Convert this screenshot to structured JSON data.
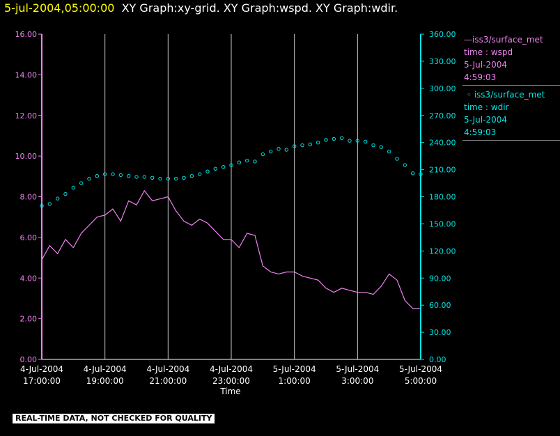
{
  "header": {
    "timestamp": "5-jul-2004,05:00:00",
    "titles": "XY Graph:xy-grid.  XY Graph:wspd.  XY Graph:wdir."
  },
  "legend": [
    {
      "line1": "iss3/surface_met",
      "line2": "time : wspd",
      "line3": "5-Jul-2004",
      "line4": "4:59:03",
      "marker": "line"
    },
    {
      "line1": "iss3/surface_met",
      "line2": "time : wdir",
      "line3": "5-Jul-2004",
      "line4": "4:59:03",
      "marker": "circle"
    }
  ],
  "disclaimer": "REAL-TIME DATA, NOT CHECKED FOR QUALITY",
  "colors": {
    "wspd": "#ee82ee",
    "wdir": "#00e5e5",
    "grid": "#c8c8c8",
    "axis_left": "#ee82ee",
    "axis_right": "#00e5e5",
    "header_time": "#ffff00"
  },
  "chart_data": {
    "type": "line",
    "xlabel": "Time",
    "xlim": [
      17.0,
      29.0
    ],
    "x_ticks": [
      {
        "x": 17,
        "line1": "4-Jul-2004",
        "line2": "17:00:00"
      },
      {
        "x": 19,
        "line1": "4-Jul-2004",
        "line2": "19:00:00"
      },
      {
        "x": 21,
        "line1": "4-Jul-2004",
        "line2": "21:00:00"
      },
      {
        "x": 23,
        "line1": "4-Jul-2004",
        "line2": "23:00:00"
      },
      {
        "x": 25,
        "line1": "5-Jul-2004",
        "line2": "1:00:00"
      },
      {
        "x": 27,
        "line1": "5-Jul-2004",
        "line2": "3:00:00"
      },
      {
        "x": 29,
        "line1": "5-Jul-2004",
        "line2": "5:00:00"
      }
    ],
    "left_axis": {
      "ylim": [
        0,
        16
      ],
      "ticks": [
        "0.00",
        "2.00",
        "4.00",
        "6.00",
        "8.00",
        "10.00",
        "12.00",
        "14.00",
        "16.00"
      ]
    },
    "right_axis": {
      "ylim": [
        0,
        360
      ],
      "ticks": [
        "0.00",
        "30.00",
        "60.00",
        "90.00",
        "120.00",
        "150.00",
        "180.00",
        "210.00",
        "240.00",
        "270.00",
        "300.00",
        "330.00",
        "360.00"
      ]
    },
    "grid": "vertical",
    "series": [
      {
        "name": "iss3/surface_met time : wspd",
        "axis": "left",
        "style": "line",
        "x": [
          17.0,
          17.25,
          17.5,
          17.75,
          18.0,
          18.25,
          18.5,
          18.75,
          19.0,
          19.25,
          19.5,
          19.75,
          20.0,
          20.25,
          20.5,
          20.75,
          21.0,
          21.25,
          21.5,
          21.75,
          22.0,
          22.25,
          22.5,
          22.75,
          23.0,
          23.25,
          23.5,
          23.75,
          24.0,
          24.25,
          24.5,
          24.75,
          25.0,
          25.25,
          25.5,
          25.75,
          26.0,
          26.25,
          26.5,
          26.75,
          27.0,
          27.25,
          27.5,
          27.75,
          28.0,
          28.25,
          28.5,
          28.75,
          29.0
        ],
        "values": [
          4.9,
          5.6,
          5.2,
          5.9,
          5.5,
          6.2,
          6.6,
          7.0,
          7.1,
          7.4,
          6.8,
          7.8,
          7.6,
          8.3,
          7.8,
          7.9,
          8.0,
          7.3,
          6.8,
          6.6,
          6.9,
          6.7,
          6.3,
          5.9,
          5.9,
          5.5,
          6.2,
          6.1,
          4.6,
          4.3,
          4.2,
          4.3,
          4.3,
          4.1,
          4.0,
          3.9,
          3.5,
          3.3,
          3.5,
          3.4,
          3.3,
          3.3,
          3.2,
          3.6,
          4.2,
          3.9,
          2.9,
          2.5,
          2.5
        ]
      },
      {
        "name": "iss3/surface_met time : wdir",
        "axis": "right",
        "style": "scatter",
        "x": [
          17.0,
          17.25,
          17.5,
          17.75,
          18.0,
          18.25,
          18.5,
          18.75,
          19.0,
          19.25,
          19.5,
          19.75,
          20.0,
          20.25,
          20.5,
          20.75,
          21.0,
          21.25,
          21.5,
          21.75,
          22.0,
          22.25,
          22.5,
          22.75,
          23.0,
          23.25,
          23.5,
          23.75,
          24.0,
          24.25,
          24.5,
          24.75,
          25.0,
          25.25,
          25.5,
          25.75,
          26.0,
          26.25,
          26.5,
          26.75,
          27.0,
          27.25,
          27.5,
          27.75,
          28.0,
          28.25,
          28.5,
          28.75,
          29.0
        ],
        "values": [
          170,
          172,
          178,
          183,
          190,
          195,
          200,
          203,
          205,
          205,
          204,
          203,
          202,
          202,
          201,
          200,
          200,
          200,
          201,
          203,
          205,
          208,
          211,
          213,
          215,
          218,
          220,
          219,
          227,
          230,
          233,
          232,
          236,
          237,
          238,
          240,
          243,
          244,
          245,
          242,
          242,
          241,
          237,
          235,
          230,
          222,
          215,
          206,
          205
        ]
      }
    ]
  }
}
